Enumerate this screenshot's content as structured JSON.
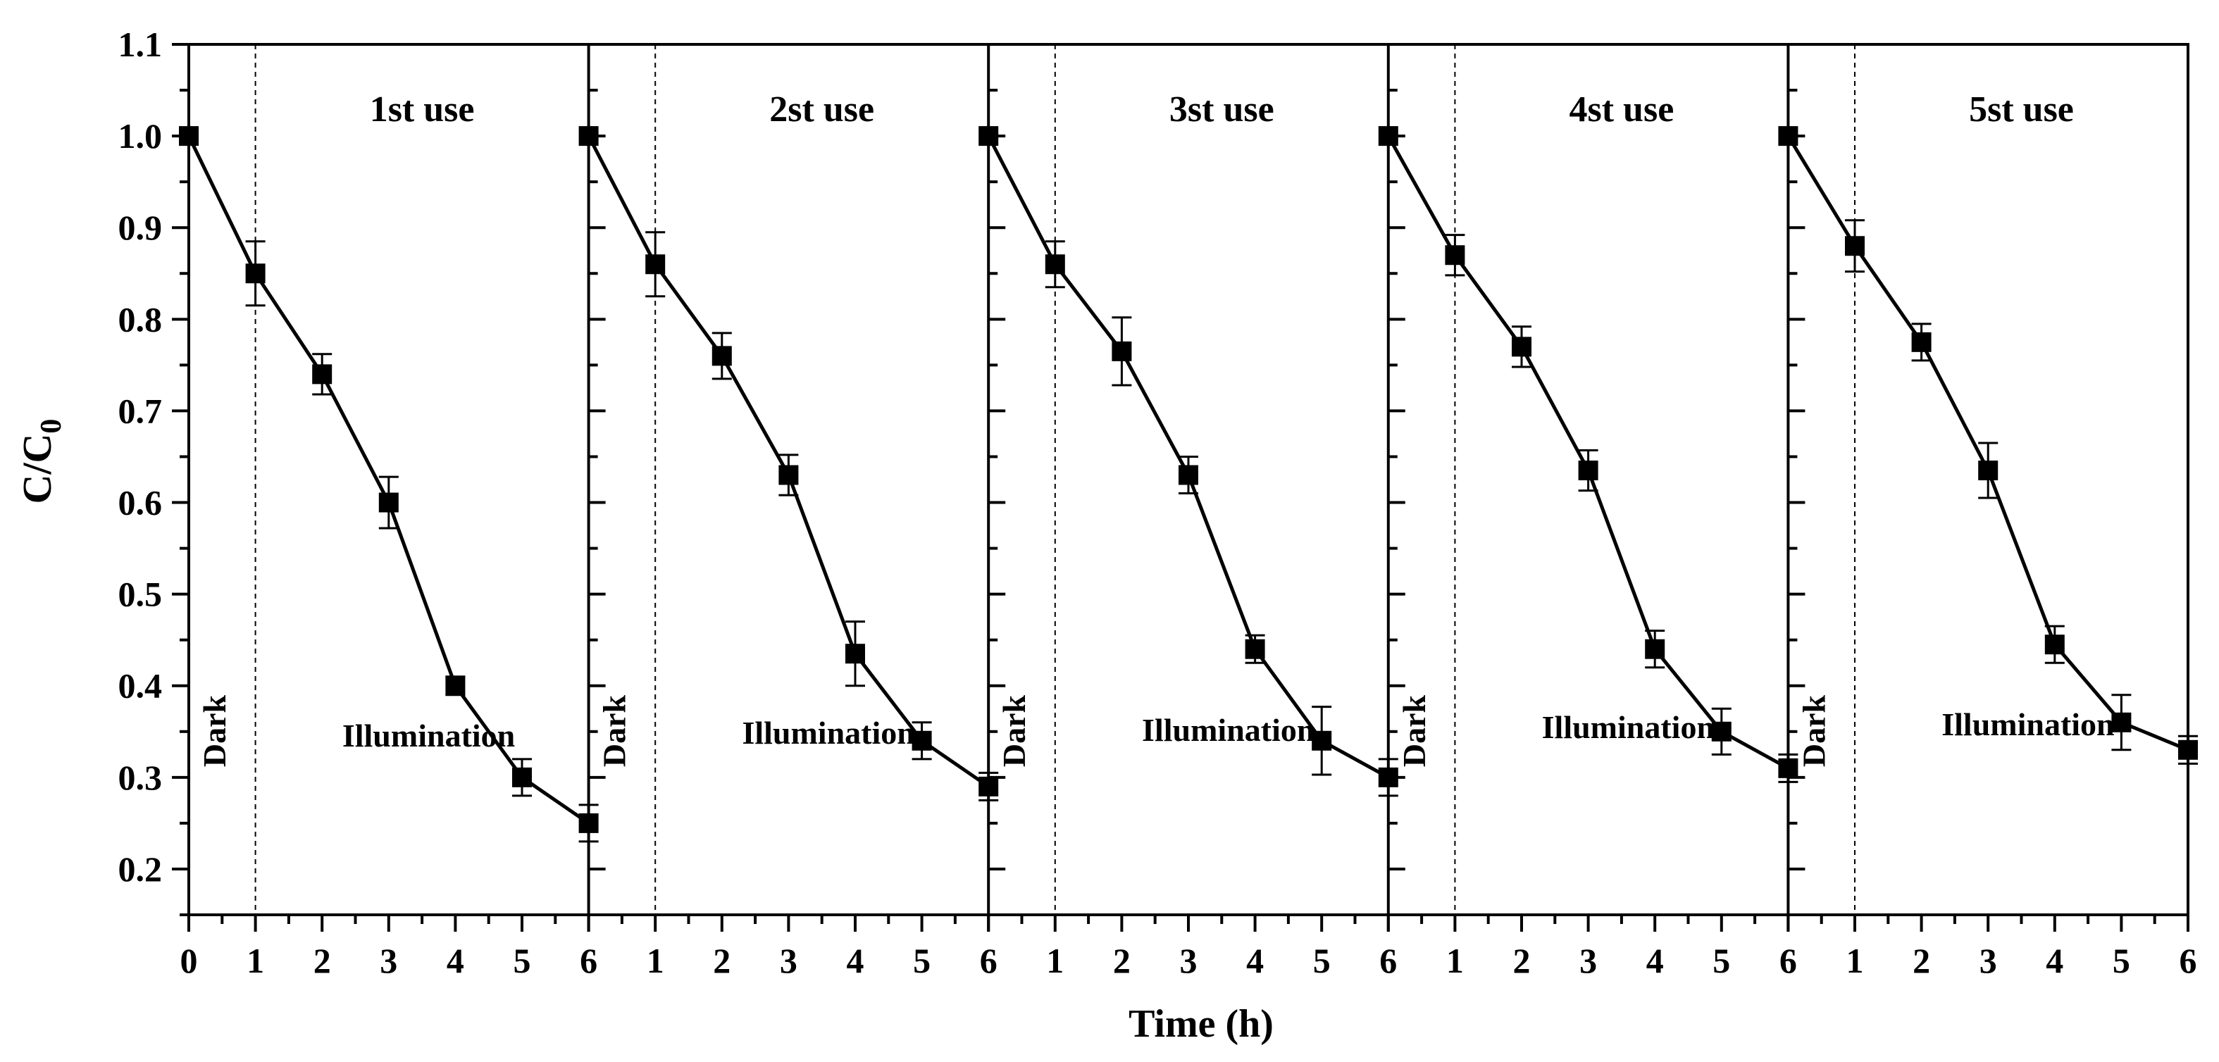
{
  "chart_data": {
    "type": "line",
    "ylabel": "C/C",
    "ylabel_sub": "0",
    "xlabel": "Time (h)",
    "ylim": [
      0.15,
      1.1
    ],
    "yticks": [
      "1.1",
      "1.0",
      "0.9",
      "0.8",
      "0.7",
      "0.6",
      "0.5",
      "0.4",
      "0.3",
      "0.2"
    ],
    "ytick_values": [
      1.1,
      1.0,
      0.9,
      0.8,
      0.7,
      0.6,
      0.5,
      0.4,
      0.3,
      0.2
    ],
    "xlim": [
      0,
      6
    ],
    "x_tick_labels": [
      "0",
      "1",
      "2",
      "3",
      "4",
      "5",
      "6",
      "1",
      "2",
      "3",
      "4",
      "5",
      "6",
      "1",
      "2",
      "3",
      "4",
      "5",
      "6",
      "1",
      "2",
      "3",
      "4",
      "5",
      "6",
      "1",
      "2",
      "3",
      "4",
      "5",
      "6"
    ],
    "panels": [
      {
        "title": "1st use",
        "dark_label": "Dark",
        "illumination_label": "Illumination",
        "x": [
          0,
          1,
          2,
          3,
          4,
          5,
          6
        ],
        "y": [
          1.0,
          0.85,
          0.74,
          0.6,
          0.4,
          0.3,
          0.25
        ],
        "err": [
          0.0,
          0.035,
          0.022,
          0.028,
          0.01,
          0.02,
          0.02
        ]
      },
      {
        "title": "2st use",
        "dark_label": "Dark",
        "illumination_label": "Illumination",
        "x": [
          0,
          1,
          2,
          3,
          4,
          5,
          6
        ],
        "y": [
          1.0,
          0.86,
          0.76,
          0.63,
          0.435,
          0.34,
          0.29
        ],
        "err": [
          0.0,
          0.035,
          0.025,
          0.022,
          0.035,
          0.02,
          0.015
        ]
      },
      {
        "title": "3st use",
        "dark_label": "Dark",
        "illumination_label": "Illumination",
        "x": [
          0,
          1,
          2,
          3,
          4,
          5,
          6
        ],
        "y": [
          1.0,
          0.86,
          0.765,
          0.63,
          0.44,
          0.34,
          0.3
        ],
        "err": [
          0.0,
          0.025,
          0.037,
          0.02,
          0.015,
          0.037,
          0.02
        ]
      },
      {
        "title": "4st use",
        "dark_label": "Dark",
        "illumination_label": "Illumination",
        "x": [
          0,
          1,
          2,
          3,
          4,
          5,
          6
        ],
        "y": [
          1.0,
          0.87,
          0.77,
          0.635,
          0.44,
          0.35,
          0.31
        ],
        "err": [
          0.0,
          0.022,
          0.022,
          0.022,
          0.02,
          0.025,
          0.015
        ]
      },
      {
        "title": "5st use",
        "dark_label": "Dark",
        "illumination_label": "Illumination",
        "x": [
          0,
          1,
          2,
          3,
          4,
          5,
          6
        ],
        "y": [
          1.0,
          0.88,
          0.775,
          0.635,
          0.445,
          0.36,
          0.33
        ],
        "err": [
          0.0,
          0.028,
          0.02,
          0.03,
          0.02,
          0.03,
          0.015
        ]
      }
    ],
    "dark_boundary_x": 1,
    "grid": false,
    "marker": "square",
    "color": "#000000"
  }
}
